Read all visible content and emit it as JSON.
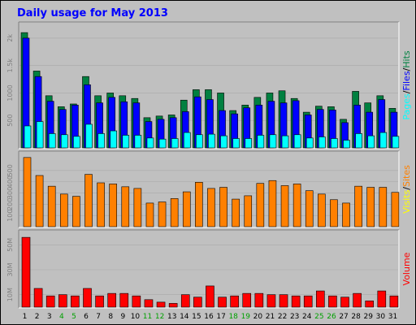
{
  "title": "Daily usage for May 2013",
  "colors": {
    "title": "#0000ff",
    "hits": "#008040",
    "files": "#0000ff",
    "pages": "#00ffff",
    "visits": "#ffff00",
    "sites": "#ff8000",
    "volume": "#ff0000",
    "weekend_label": "#00a000",
    "weekday_label": "#000000",
    "panel_bg": "#c0c0c0"
  },
  "chart_data": [
    {
      "type": "bar",
      "categories": [
        "1",
        "2",
        "3",
        "4",
        "5",
        "6",
        "7",
        "8",
        "9",
        "10",
        "11",
        "12",
        "13",
        "14",
        "15",
        "16",
        "17",
        "18",
        "19",
        "20",
        "21",
        "22",
        "23",
        "24",
        "25",
        "26",
        "27",
        "28",
        "29",
        "30",
        "31"
      ],
      "weekend_days": [
        "4",
        "5",
        "11",
        "12",
        "18",
        "19",
        "25",
        "26"
      ],
      "series": [
        {
          "name": "Hits",
          "values": [
            2100,
            1400,
            950,
            750,
            800,
            1300,
            950,
            1000,
            950,
            900,
            550,
            580,
            600,
            870,
            1060,
            1060,
            1000,
            680,
            780,
            920,
            1000,
            1040,
            900,
            650,
            760,
            750,
            520,
            1030,
            820,
            950,
            720
          ]
        },
        {
          "name": "Files",
          "values": [
            2000,
            1300,
            850,
            700,
            780,
            1150,
            820,
            920,
            840,
            820,
            480,
            520,
            550,
            660,
            930,
            880,
            680,
            620,
            730,
            780,
            850,
            820,
            860,
            600,
            700,
            690,
            460,
            780,
            650,
            880,
            650
          ]
        },
        {
          "name": "Pages",
          "values": [
            400,
            480,
            260,
            240,
            210,
            430,
            260,
            310,
            230,
            230,
            180,
            160,
            170,
            280,
            240,
            250,
            220,
            170,
            170,
            230,
            240,
            220,
            240,
            180,
            200,
            170,
            140,
            260,
            220,
            280,
            210
          ]
        }
      ],
      "axis_labels": [
        "Pages",
        "/",
        "Files",
        "/",
        "Hits"
      ],
      "yticks": [
        "500",
        "1000",
        "1.5k",
        "2k"
      ],
      "ylim": [
        0,
        2250
      ]
    },
    {
      "type": "bar",
      "categories": [
        "1",
        "2",
        "3",
        "4",
        "5",
        "6",
        "7",
        "8",
        "9",
        "10",
        "11",
        "12",
        "13",
        "14",
        "15",
        "16",
        "17",
        "18",
        "19",
        "20",
        "21",
        "22",
        "23",
        "24",
        "25",
        "26",
        "27",
        "28",
        "29",
        "30",
        "31"
      ],
      "series": [
        {
          "name": "Visits",
          "values": [
            0,
            0,
            0,
            0,
            0,
            0,
            0,
            0,
            0,
            0,
            0,
            0,
            0,
            0,
            0,
            0,
            0,
            0,
            0,
            0,
            0,
            0,
            0,
            0,
            0,
            0,
            0,
            0,
            0,
            0,
            0
          ]
        },
        {
          "name": "Sites",
          "values": [
            615,
            455,
            360,
            290,
            270,
            465,
            390,
            380,
            355,
            340,
            210,
            220,
            250,
            310,
            395,
            340,
            350,
            245,
            275,
            385,
            410,
            365,
            380,
            320,
            290,
            240,
            210,
            360,
            350,
            350,
            305
          ]
        }
      ],
      "axis_labels": [
        "Visits",
        "/",
        "Sites"
      ],
      "yticks": [
        "100",
        "200",
        "300",
        "400",
        "500"
      ],
      "ylim": [
        0,
        650
      ]
    },
    {
      "type": "bar",
      "categories": [
        "1",
        "2",
        "3",
        "4",
        "5",
        "6",
        "7",
        "8",
        "9",
        "10",
        "11",
        "12",
        "13",
        "14",
        "15",
        "16",
        "17",
        "18",
        "19",
        "20",
        "21",
        "22",
        "23",
        "24",
        "25",
        "26",
        "27",
        "28",
        "29",
        "30",
        "31"
      ],
      "series": [
        {
          "name": "Volume",
          "values": [
            56,
            15,
            9,
            10,
            9,
            15,
            9,
            11,
            11,
            9,
            6,
            4,
            3,
            10,
            8,
            17,
            8,
            9,
            11,
            11,
            10,
            10,
            9,
            9,
            13,
            9,
            8,
            11,
            5,
            13,
            9
          ]
        }
      ],
      "axis_labels": [
        "Volume"
      ],
      "yticks": [
        "10M",
        "30M",
        "50M"
      ],
      "ylim": [
        0,
        60
      ]
    }
  ]
}
